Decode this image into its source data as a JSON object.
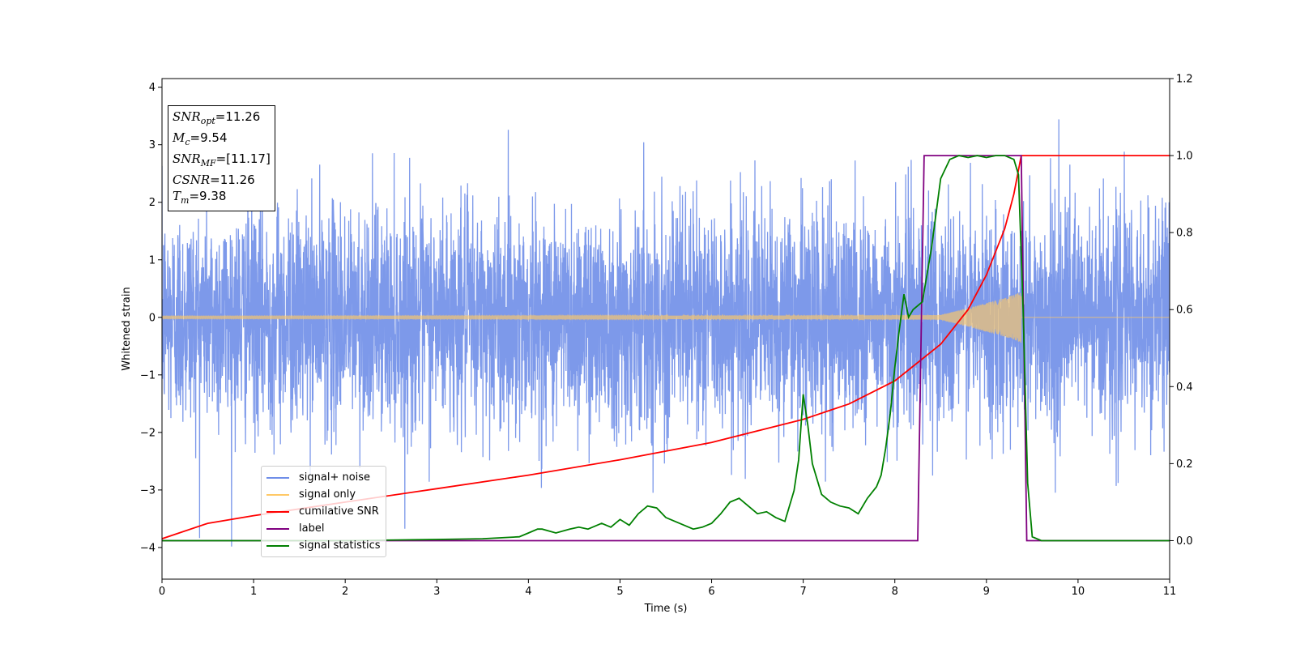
{
  "chart_data": {
    "type": "line",
    "xlabel": "Time (s)",
    "ylabel": "Whitened strain",
    "xlim": [
      0,
      11
    ],
    "ylim": [
      -4.55,
      4.15
    ],
    "y2lim": [
      -0.1,
      1.2
    ],
    "x_ticks": [
      0,
      1,
      2,
      3,
      4,
      5,
      6,
      7,
      8,
      9,
      10,
      11
    ],
    "y_ticks": [
      -4,
      -3,
      -2,
      -1,
      0,
      1,
      2,
      3,
      4
    ],
    "y2_ticks": [
      0.0,
      0.2,
      0.4,
      0.6,
      0.8,
      1.0,
      1.2
    ],
    "legend_position": "lower-left",
    "info_box": {
      "snr_opt_label": "SNR",
      "snr_opt_sub": "opt",
      "snr_opt_value": "=11.26",
      "mc_label": "M",
      "mc_sub": "c",
      "mc_value": "=9.54",
      "snr_mf_label": "SNR",
      "snr_mf_sub": "MF",
      "snr_mf_value": "=[11.17]",
      "csnr_label": "CSNR",
      "csnr_value": "=11.26",
      "tm_label": "T",
      "tm_sub": "m",
      "tm_value": "=9.38"
    },
    "series": [
      {
        "name": "signal+ noise",
        "color": "#6f8ee8",
        "axis": "left",
        "description_values": {
          "noise_std": 1.0,
          "range": [
            -4.15,
            3.78
          ]
        }
      },
      {
        "name": "signal only",
        "color": "#ffc966",
        "axis": "left",
        "chirp": {
          "t_start": 0,
          "t_merge": 9.38,
          "amp_start": 0.03,
          "amp_peak": 1.05
        }
      },
      {
        "name": "cumilative SNR",
        "color": "#ff0000",
        "axis": "right",
        "x": [
          0,
          0.5,
          1,
          2,
          3,
          4,
          5,
          6,
          7,
          7.5,
          8,
          8.5,
          8.8,
          9.0,
          9.2,
          9.3,
          9.38,
          11
        ],
        "y": [
          0.005,
          0.045,
          0.065,
          0.1,
          0.135,
          0.17,
          0.21,
          0.255,
          0.315,
          0.355,
          0.415,
          0.51,
          0.6,
          0.69,
          0.81,
          0.9,
          1.0,
          1.0
        ]
      },
      {
        "name": "label",
        "color": "#800080",
        "axis": "right",
        "x": [
          0,
          8.25,
          8.32,
          9.38,
          9.44,
          11
        ],
        "y": [
          0,
          0,
          1,
          1,
          0,
          0
        ]
      },
      {
        "name": "signal statistics",
        "color": "#008000",
        "axis": "right",
        "x": [
          0,
          1,
          2,
          3,
          3.5,
          3.9,
          4.0,
          4.1,
          4.15,
          4.3,
          4.45,
          4.55,
          4.65,
          4.8,
          4.9,
          5.0,
          5.1,
          5.2,
          5.3,
          5.4,
          5.5,
          5.6,
          5.7,
          5.8,
          5.9,
          6.0,
          6.1,
          6.2,
          6.3,
          6.4,
          6.5,
          6.6,
          6.7,
          6.8,
          6.9,
          6.95,
          7.0,
          7.05,
          7.1,
          7.2,
          7.3,
          7.4,
          7.5,
          7.6,
          7.7,
          7.8,
          7.85,
          7.9,
          7.95,
          8.0,
          8.05,
          8.1,
          8.15,
          8.2,
          8.3,
          8.4,
          8.5,
          8.6,
          8.7,
          8.8,
          8.9,
          9.0,
          9.1,
          9.2,
          9.3,
          9.35,
          9.4,
          9.45,
          9.5,
          9.6,
          11
        ],
        "y": [
          0,
          0,
          0,
          0.003,
          0.005,
          0.01,
          0.02,
          0.03,
          0.03,
          0.02,
          0.03,
          0.035,
          0.03,
          0.045,
          0.035,
          0.055,
          0.04,
          0.07,
          0.09,
          0.085,
          0.06,
          0.05,
          0.04,
          0.03,
          0.035,
          0.045,
          0.07,
          0.1,
          0.11,
          0.09,
          0.07,
          0.075,
          0.06,
          0.05,
          0.13,
          0.21,
          0.38,
          0.3,
          0.2,
          0.12,
          0.1,
          0.09,
          0.085,
          0.07,
          0.11,
          0.14,
          0.17,
          0.24,
          0.33,
          0.45,
          0.55,
          0.64,
          0.58,
          0.6,
          0.62,
          0.76,
          0.94,
          0.99,
          1.0,
          0.995,
          1.0,
          0.995,
          1.0,
          1.0,
          0.99,
          0.95,
          0.6,
          0.15,
          0.01,
          0.0,
          0.0
        ]
      }
    ]
  }
}
